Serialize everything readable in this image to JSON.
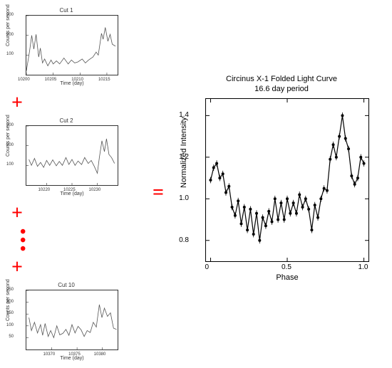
{
  "operators": {
    "plus": "+",
    "equals": "=",
    "dot": "•",
    "plus_color": "#ff0000",
    "equals_color": "#ff0000",
    "dots_color": "#ff0000"
  },
  "small_common": {
    "xlabel": "Time (day)",
    "ylabel": "Counts per second",
    "line_color": "#555555",
    "line_width": 0.8,
    "border_color": "#333333",
    "bg": "#ffffff",
    "label_fontsize": 7,
    "tick_fontsize": 6
  },
  "small_charts": [
    {
      "title": "Cut 1",
      "xlim": [
        10200,
        10217
      ],
      "xticks": [
        10200,
        10205,
        10210,
        10215
      ],
      "ylim": [
        0,
        300
      ],
      "yticks": [
        100,
        200,
        300
      ],
      "series": [
        [
          10200,
          20
        ],
        [
          10200.6,
          120
        ],
        [
          10201,
          200
        ],
        [
          10201.4,
          130
        ],
        [
          10201.8,
          205
        ],
        [
          10202.3,
          90
        ],
        [
          10202.6,
          135
        ],
        [
          10203,
          60
        ],
        [
          10203.4,
          80
        ],
        [
          10204,
          45
        ],
        [
          10204.6,
          75
        ],
        [
          10205,
          55
        ],
        [
          10205.6,
          70
        ],
        [
          10206.2,
          55
        ],
        [
          10207,
          85
        ],
        [
          10207.8,
          55
        ],
        [
          10208.4,
          75
        ],
        [
          10209,
          60
        ],
        [
          10209.6,
          65
        ],
        [
          10210.4,
          80
        ],
        [
          10211,
          60
        ],
        [
          10211.6,
          75
        ],
        [
          10212.4,
          90
        ],
        [
          10213,
          115
        ],
        [
          10213.4,
          100
        ],
        [
          10214,
          210
        ],
        [
          10214.3,
          180
        ],
        [
          10214.7,
          240
        ],
        [
          10215.2,
          170
        ],
        [
          10215.6,
          205
        ],
        [
          10216,
          155
        ],
        [
          10216.6,
          145
        ]
      ]
    },
    {
      "title": "Cut 2",
      "xlim": [
        10216,
        10234
      ],
      "xticks": [
        10220,
        10225,
        10230
      ],
      "ylim": [
        0,
        300
      ],
      "yticks": [
        100,
        200,
        300
      ],
      "series": [
        [
          10216.5,
          130
        ],
        [
          10217,
          100
        ],
        [
          10217.6,
          135
        ],
        [
          10218.2,
          95
        ],
        [
          10218.8,
          115
        ],
        [
          10219.4,
          90
        ],
        [
          10220,
          125
        ],
        [
          10220.6,
          100
        ],
        [
          10221.2,
          128
        ],
        [
          10221.9,
          98
        ],
        [
          10222.5,
          120
        ],
        [
          10223.1,
          100
        ],
        [
          10223.8,
          140
        ],
        [
          10224.4,
          105
        ],
        [
          10225,
          130
        ],
        [
          10225.6,
          100
        ],
        [
          10226.2,
          122
        ],
        [
          10226.9,
          104
        ],
        [
          10227.5,
          140
        ],
        [
          10228.2,
          110
        ],
        [
          10228.8,
          125
        ],
        [
          10229.4,
          95
        ],
        [
          10230,
          60
        ],
        [
          10230.4,
          140
        ],
        [
          10230.9,
          225
        ],
        [
          10231.4,
          170
        ],
        [
          10231.8,
          235
        ],
        [
          10232.3,
          155
        ],
        [
          10232.8,
          140
        ],
        [
          10233.4,
          110
        ]
      ]
    },
    {
      "title": "Cut 10",
      "xlim": [
        10365,
        10383
      ],
      "xticks": [
        10370,
        10375,
        10380
      ],
      "ylim": [
        0,
        250
      ],
      "yticks": [
        50,
        100,
        150,
        200,
        250
      ],
      "series": [
        [
          10365.5,
          135
        ],
        [
          10366,
          80
        ],
        [
          10366.6,
          115
        ],
        [
          10367.2,
          70
        ],
        [
          10367.8,
          105
        ],
        [
          10368.2,
          60
        ],
        [
          10368.7,
          110
        ],
        [
          10369.3,
          55
        ],
        [
          10369.8,
          80
        ],
        [
          10370.4,
          50
        ],
        [
          10371,
          100
        ],
        [
          10371.6,
          62
        ],
        [
          10372.2,
          68
        ],
        [
          10372.8,
          85
        ],
        [
          10373.4,
          60
        ],
        [
          10374,
          105
        ],
        [
          10374.6,
          70
        ],
        [
          10375.2,
          98
        ],
        [
          10375.8,
          83
        ],
        [
          10376.4,
          55
        ],
        [
          10377,
          80
        ],
        [
          10377.6,
          72
        ],
        [
          10378.2,
          115
        ],
        [
          10378.8,
          95
        ],
        [
          10379.4,
          190
        ],
        [
          10379.9,
          135
        ],
        [
          10380.4,
          175
        ],
        [
          10381,
          140
        ],
        [
          10381.6,
          155
        ],
        [
          10382.2,
          90
        ],
        [
          10382.8,
          85
        ]
      ]
    }
  ],
  "big_chart": {
    "type": "line",
    "title_line1": "Circinus X-1 Folded Light Curve",
    "title_line2": "16.6 day period",
    "title_fontsize": 11,
    "xlabel": "Phase",
    "ylabel": "Normalized Intensity",
    "label_fontsize": 11,
    "xlim": [
      -0.03,
      1.03
    ],
    "xticks": [
      0,
      0.5,
      1.0
    ],
    "xtick_labels": [
      "0",
      "0.5",
      "1.0"
    ],
    "ylim": [
      0.7,
      1.48
    ],
    "yticks": [
      0.8,
      1.0,
      1.2,
      1.4
    ],
    "ytick_labels": [
      "0.8",
      "1.0",
      "1.2",
      "1.4"
    ],
    "line_color": "#000000",
    "line_width": 1.2,
    "marker": "dot",
    "marker_size": 2,
    "errorbar_half": 0.015,
    "background_color": "#ffffff",
    "border_color": "#000000",
    "series": [
      [
        0.0,
        1.09
      ],
      [
        0.02,
        1.15
      ],
      [
        0.04,
        1.17
      ],
      [
        0.06,
        1.1
      ],
      [
        0.08,
        1.12
      ],
      [
        0.1,
        1.03
      ],
      [
        0.12,
        1.06
      ],
      [
        0.14,
        0.96
      ],
      [
        0.16,
        0.92
      ],
      [
        0.18,
        0.99
      ],
      [
        0.2,
        0.88
      ],
      [
        0.22,
        0.96
      ],
      [
        0.24,
        0.85
      ],
      [
        0.26,
        0.95
      ],
      [
        0.28,
        0.83
      ],
      [
        0.3,
        0.93
      ],
      [
        0.32,
        0.8
      ],
      [
        0.34,
        0.91
      ],
      [
        0.36,
        0.87
      ],
      [
        0.38,
        0.94
      ],
      [
        0.4,
        0.89
      ],
      [
        0.42,
        1.0
      ],
      [
        0.44,
        0.9
      ],
      [
        0.46,
        0.98
      ],
      [
        0.48,
        0.9
      ],
      [
        0.5,
        1.0
      ],
      [
        0.52,
        0.93
      ],
      [
        0.54,
        0.98
      ],
      [
        0.56,
        0.93
      ],
      [
        0.58,
        1.02
      ],
      [
        0.6,
        0.96
      ],
      [
        0.62,
        1.0
      ],
      [
        0.64,
        0.95
      ],
      [
        0.66,
        0.85
      ],
      [
        0.68,
        0.97
      ],
      [
        0.7,
        0.91
      ],
      [
        0.72,
        1.0
      ],
      [
        0.74,
        1.05
      ],
      [
        0.76,
        1.04
      ],
      [
        0.78,
        1.19
      ],
      [
        0.8,
        1.26
      ],
      [
        0.82,
        1.2
      ],
      [
        0.84,
        1.3
      ],
      [
        0.86,
        1.4
      ],
      [
        0.88,
        1.29
      ],
      [
        0.9,
        1.24
      ],
      [
        0.92,
        1.11
      ],
      [
        0.94,
        1.07
      ],
      [
        0.96,
        1.1
      ],
      [
        0.98,
        1.2
      ],
      [
        1.0,
        1.17
      ]
    ]
  }
}
